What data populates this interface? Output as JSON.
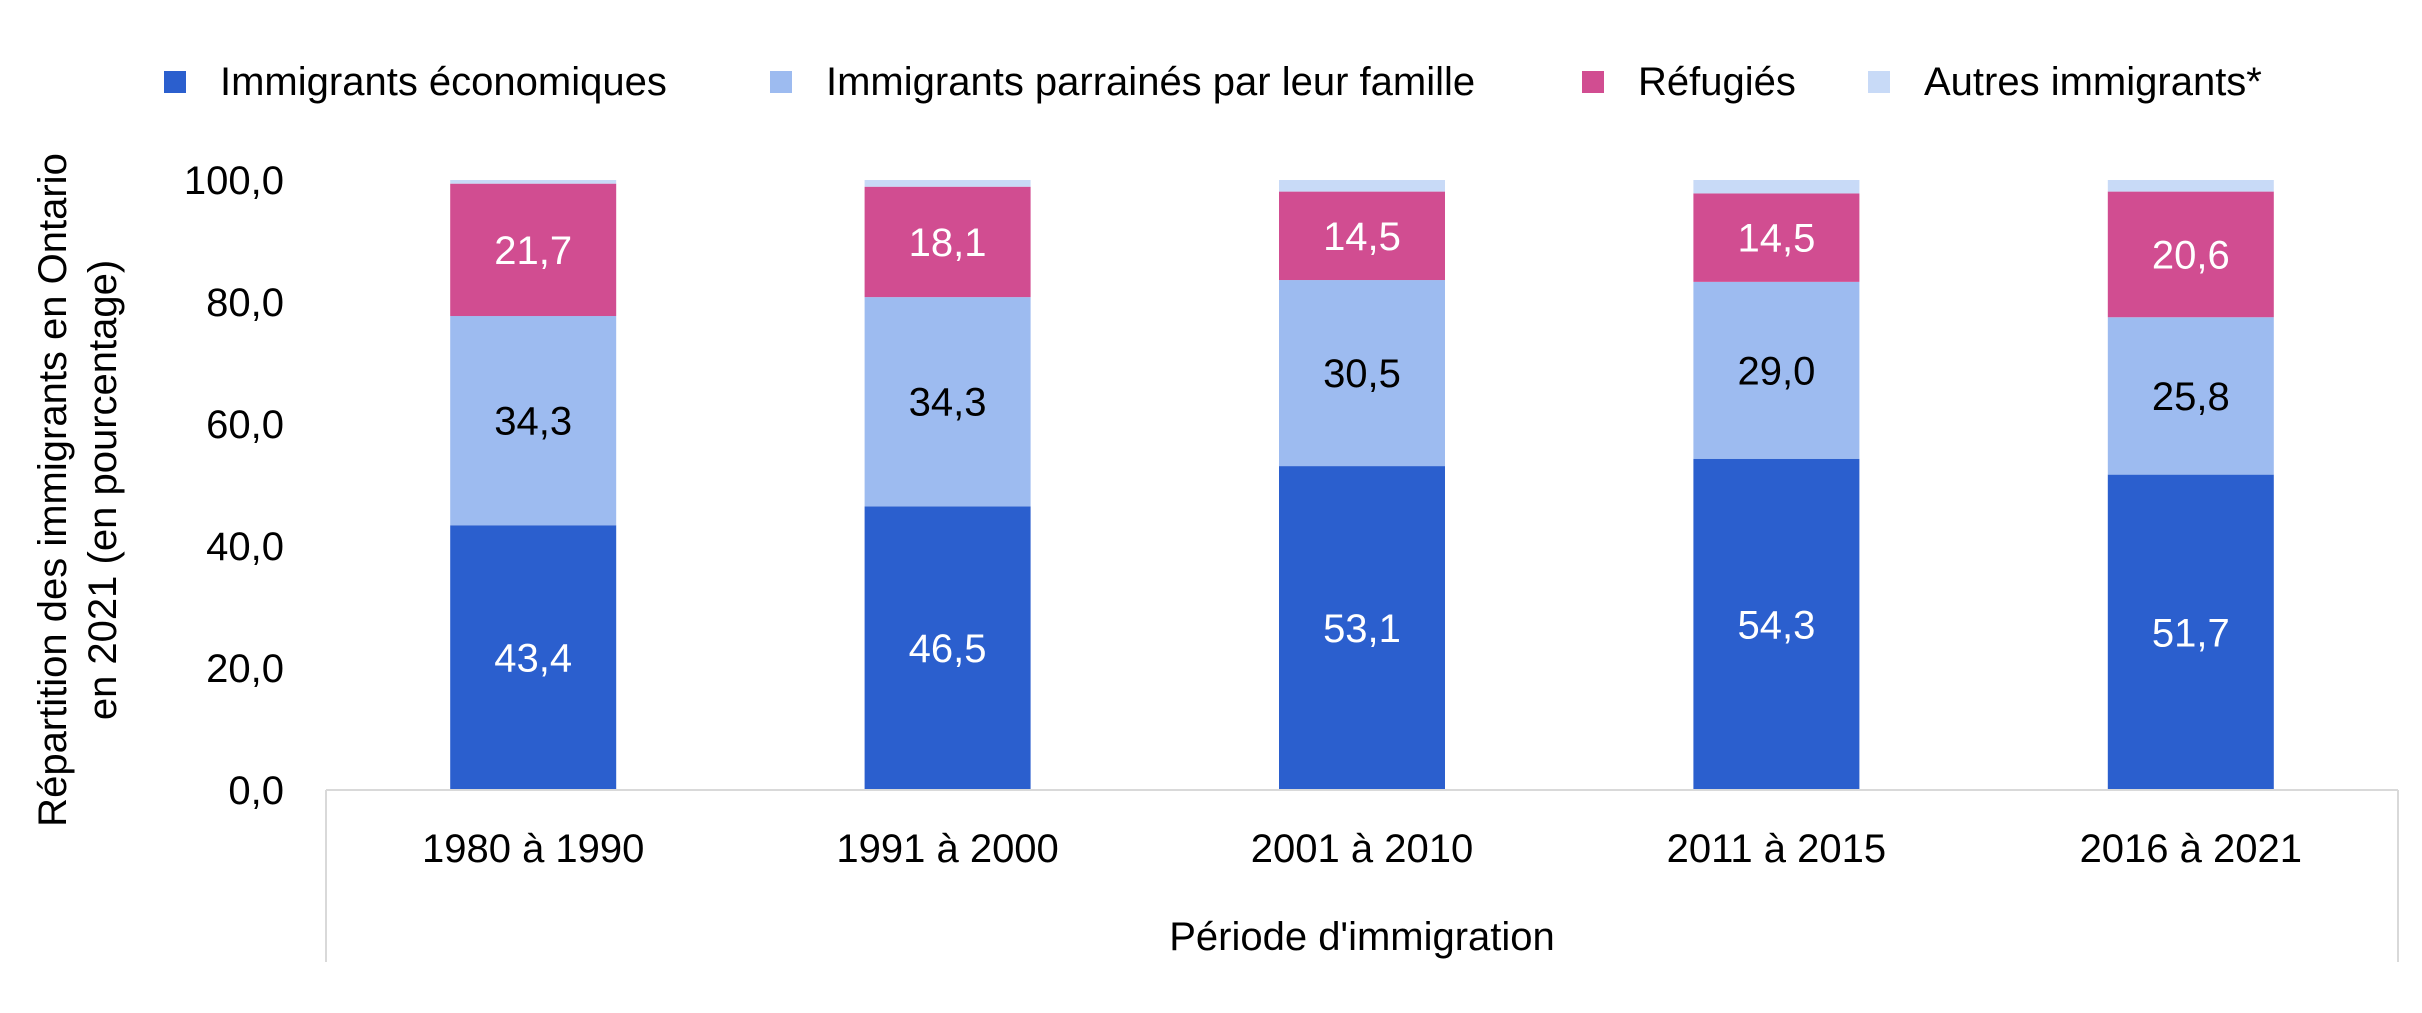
{
  "chart_data": {
    "type": "bar",
    "stacked": true,
    "title": "",
    "xlabel": "Période d'immigration",
    "ylabel": "Répartition des immigrants en Ontario en 2021 (en pourcentage)",
    "ylabel_lines": [
      "Répartition des immigrants en Ontario",
      "en 2021 (en pourcentage)"
    ],
    "ylim": [
      0,
      100
    ],
    "yticks": [
      0,
      20,
      40,
      60,
      80,
      100
    ],
    "ytick_labels": [
      "0,0",
      "20,0",
      "40,0",
      "60,0",
      "80,0",
      "100,0"
    ],
    "grid": false,
    "legend_position": "top",
    "categories": [
      "1980 à 1990",
      "1991 à 2000",
      "2001 à 2010",
      "2011 à 2015",
      "2016 à 2021"
    ],
    "series": [
      {
        "name": "Immigrants économiques",
        "color": "#2b5fce",
        "label_color": "#ffffff",
        "values": [
          43.4,
          46.5,
          53.1,
          54.3,
          51.7
        ],
        "labels": [
          "43,4",
          "46,5",
          "53,1",
          "54,3",
          "51,7"
        ]
      },
      {
        "name": "Immigrants parrainés par leur famille",
        "color": "#9dbbf0",
        "label_color": "#000000",
        "values": [
          34.3,
          34.3,
          30.5,
          29.0,
          25.8
        ],
        "labels": [
          "34,3",
          "34,3",
          "30,5",
          "29,0",
          "25,8"
        ]
      },
      {
        "name": "Réfugiés",
        "color": "#d14d91",
        "label_color": "#ffffff",
        "values": [
          21.7,
          18.1,
          14.5,
          14.5,
          20.6
        ],
        "labels": [
          "21,7",
          "18,1",
          "14,5",
          "14,5",
          "20,6"
        ]
      },
      {
        "name": "Autres immigrants*",
        "color": "#c8daf7",
        "label_color": "#000000",
        "values": [
          0.6,
          1.1,
          1.9,
          2.2,
          1.9
        ],
        "labels": []
      }
    ]
  }
}
